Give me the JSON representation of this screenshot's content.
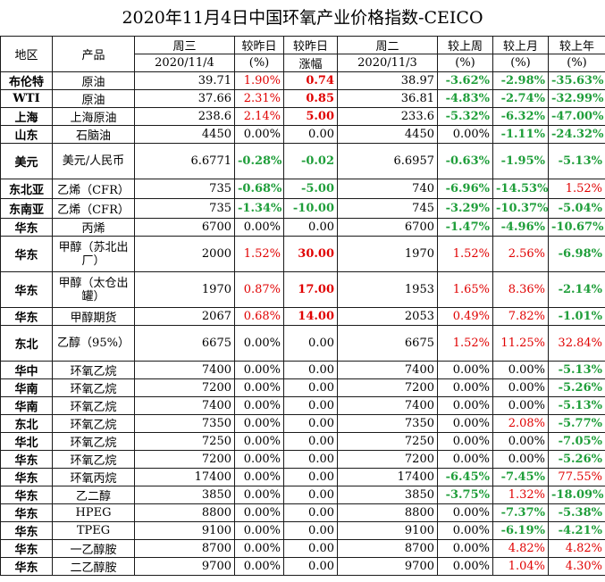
{
  "title": "2020年11月4日中国环氧产业价格指数-CEICO",
  "headers": {
    "region": "地区",
    "product": "产品",
    "wed": "周三",
    "wed_date": "2020/11/4",
    "chg_day": "较昨日",
    "chg_day_unit": "(%)",
    "chg_day_amt": "较昨日",
    "chg_day_amt_unit": "涨幅",
    "tue": "周二",
    "tue_date": "2020/11/3",
    "chg_week": "较上周",
    "chg_week_unit": "(%)",
    "chg_month": "较上月",
    "chg_month_unit": "(%)",
    "chg_year": "较上年",
    "chg_year_unit": "(%)"
  },
  "rows": [
    {
      "region": "布伦特",
      "product": "原油",
      "wed": "39.71",
      "pct": "1.90%",
      "pct_c": "red",
      "amt": "0.74",
      "amt_c": "redb",
      "tue": "38.97",
      "wk": "-3.62%",
      "wk_c": "green",
      "mo": "-2.98%",
      "mo_c": "green",
      "yr": "-35.63%",
      "yr_c": "green",
      "h": 20
    },
    {
      "region": "WTI",
      "product": "原油",
      "wed": "37.66",
      "pct": "2.31%",
      "pct_c": "red",
      "amt": "0.85",
      "amt_c": "redb",
      "tue": "36.81",
      "wk": "-4.83%",
      "wk_c": "green",
      "mo": "-2.74%",
      "mo_c": "green",
      "yr": "-32.99%",
      "yr_c": "green",
      "h": 20
    },
    {
      "region": "上海",
      "product": "上海原油",
      "wed": "238.6",
      "pct": "2.14%",
      "pct_c": "red",
      "amt": "5.00",
      "amt_c": "redb",
      "tue": "233.6",
      "wk": "-5.32%",
      "wk_c": "green",
      "mo": "-6.32%",
      "mo_c": "green",
      "yr": "-47.00%",
      "yr_c": "green",
      "h": 20
    },
    {
      "region": "山东",
      "product": "石脑油",
      "wed": "4450",
      "pct": "0.00%",
      "pct_c": "black",
      "amt": "0.00",
      "amt_c": "black",
      "tue": "4450",
      "wk": "0.00%",
      "wk_c": "black",
      "mo": "-1.11%",
      "mo_c": "green",
      "yr": "-24.32%",
      "yr_c": "green",
      "h": 20
    },
    {
      "region": "美元",
      "product": "美元/人民币",
      "wed": "6.6771",
      "pct": "-0.28%",
      "pct_c": "green",
      "amt": "-0.02",
      "amt_c": "green",
      "tue": "6.6957",
      "wk": "-0.63%",
      "wk_c": "green",
      "mo": "-1.95%",
      "mo_c": "green",
      "yr": "-5.13%",
      "yr_c": "green",
      "h": 40,
      "wrap": true
    },
    {
      "region": "东北亚",
      "product": "乙烯（CFR）",
      "wed": "735",
      "pct": "-0.68%",
      "pct_c": "green",
      "amt": "-5.00",
      "amt_c": "green",
      "tue": "740",
      "wk": "-6.96%",
      "wk_c": "green",
      "mo": "-14.53%",
      "mo_c": "green",
      "yr": "1.52%",
      "yr_c": "red",
      "h": 22
    },
    {
      "region": "东南亚",
      "product": "乙烯（CFR）",
      "wed": "735",
      "pct": "-1.34%",
      "pct_c": "green",
      "amt": "-10.00",
      "amt_c": "green",
      "tue": "745",
      "wk": "-3.29%",
      "wk_c": "green",
      "mo": "-10.37%",
      "mo_c": "green",
      "yr": "-5.04%",
      "yr_c": "green",
      "h": 22
    },
    {
      "region": "华东",
      "product": "丙烯",
      "wed": "6700",
      "pct": "0.00%",
      "pct_c": "black",
      "amt": "0.00",
      "amt_c": "black",
      "tue": "6700",
      "wk": "-1.47%",
      "wk_c": "green",
      "mo": "-4.96%",
      "mo_c": "green",
      "yr": "-10.67%",
      "yr_c": "green",
      "h": 20
    },
    {
      "region": "华东",
      "product": "甲醇（苏北出厂）",
      "wed": "2000",
      "pct": "1.52%",
      "pct_c": "red",
      "amt": "30.00",
      "amt_c": "redb",
      "tue": "1970",
      "wk": "1.52%",
      "wk_c": "red",
      "mo": "2.56%",
      "mo_c": "red",
      "yr": "-6.98%",
      "yr_c": "green",
      "h": 40,
      "wrap": true
    },
    {
      "region": "华东",
      "product": "甲醇（太仓出罐）",
      "wed": "1970",
      "pct": "0.87%",
      "pct_c": "red",
      "amt": "17.00",
      "amt_c": "redb",
      "tue": "1953",
      "wk": "1.65%",
      "wk_c": "red",
      "mo": "8.36%",
      "mo_c": "red",
      "yr": "-2.14%",
      "yr_c": "green",
      "h": 40,
      "wrap": true
    },
    {
      "region": "华东",
      "product": "甲醇期货",
      "wed": "2067",
      "pct": "0.68%",
      "pct_c": "red",
      "amt": "14.00",
      "amt_c": "redb",
      "tue": "2053",
      "wk": "0.49%",
      "wk_c": "red",
      "mo": "7.82%",
      "mo_c": "red",
      "yr": "-1.01%",
      "yr_c": "green",
      "h": 20
    },
    {
      "region": "东北",
      "product": "乙醇（95%）",
      "wed": "6675",
      "pct": "0.00%",
      "pct_c": "black",
      "amt": "0.00",
      "amt_c": "black",
      "tue": "6675",
      "wk": "1.52%",
      "wk_c": "red",
      "mo": "11.25%",
      "mo_c": "red",
      "yr": "32.84%",
      "yr_c": "red",
      "h": 40,
      "wrap": true
    },
    {
      "region": "华中",
      "product": "环氧乙烷",
      "wed": "7400",
      "pct": "0.00%",
      "pct_c": "black",
      "amt": "0.00",
      "amt_c": "black",
      "tue": "7400",
      "wk": "0.00%",
      "wk_c": "black",
      "mo": "0.00%",
      "mo_c": "black",
      "yr": "-5.13%",
      "yr_c": "green",
      "h": 20
    },
    {
      "region": "华南",
      "product": "环氧乙烷",
      "wed": "7200",
      "pct": "0.00%",
      "pct_c": "black",
      "amt": "0.00",
      "amt_c": "black",
      "tue": "7200",
      "wk": "0.00%",
      "wk_c": "black",
      "mo": "0.00%",
      "mo_c": "black",
      "yr": "-5.26%",
      "yr_c": "green",
      "h": 20
    },
    {
      "region": "华南",
      "product": "环氧乙烷",
      "wed": "7400",
      "pct": "0.00%",
      "pct_c": "black",
      "amt": "0.00",
      "amt_c": "black",
      "tue": "7400",
      "wk": "0.00%",
      "wk_c": "black",
      "mo": "0.00%",
      "mo_c": "black",
      "yr": "-5.13%",
      "yr_c": "green",
      "h": 20
    },
    {
      "region": "东北",
      "product": "环氧乙烷",
      "wed": "7350",
      "pct": "0.00%",
      "pct_c": "black",
      "amt": "0.00",
      "amt_c": "black",
      "tue": "7350",
      "wk": "0.00%",
      "wk_c": "black",
      "mo": "2.08%",
      "mo_c": "red",
      "yr": "-5.77%",
      "yr_c": "green",
      "h": 20
    },
    {
      "region": "华北",
      "product": "环氧乙烷",
      "wed": "7250",
      "pct": "0.00%",
      "pct_c": "black",
      "amt": "0.00",
      "amt_c": "black",
      "tue": "7250",
      "wk": "0.00%",
      "wk_c": "black",
      "mo": "0.00%",
      "mo_c": "black",
      "yr": "-7.05%",
      "yr_c": "green",
      "h": 20
    },
    {
      "region": "华东",
      "product": "环氧乙烷",
      "wed": "7200",
      "pct": "0.00%",
      "pct_c": "black",
      "amt": "0.00",
      "amt_c": "black",
      "tue": "7200",
      "wk": "0.00%",
      "wk_c": "black",
      "mo": "0.00%",
      "mo_c": "black",
      "yr": "-5.26%",
      "yr_c": "green",
      "h": 20
    },
    {
      "region": "华东",
      "product": "环氧丙烷",
      "wed": "17400",
      "pct": "0.00%",
      "pct_c": "black",
      "amt": "0.00",
      "amt_c": "black",
      "tue": "17400",
      "wk": "-6.45%",
      "wk_c": "green",
      "mo": "-7.45%",
      "mo_c": "green",
      "yr": "77.55%",
      "yr_c": "red",
      "h": 20
    },
    {
      "region": "华东",
      "product": "乙二醇",
      "wed": "3850",
      "pct": "0.00%",
      "pct_c": "black",
      "amt": "0.00",
      "amt_c": "black",
      "tue": "3850",
      "wk": "-3.75%",
      "wk_c": "green",
      "mo": "1.32%",
      "mo_c": "red",
      "yr": "-18.09%",
      "yr_c": "green",
      "h": 20
    },
    {
      "region": "华东",
      "product": "HPEG",
      "wed": "8800",
      "pct": "0.00%",
      "pct_c": "black",
      "amt": "0.00",
      "amt_c": "black",
      "tue": "8800",
      "wk": "0.00%",
      "wk_c": "black",
      "mo": "-7.37%",
      "mo_c": "green",
      "yr": "-5.38%",
      "yr_c": "green",
      "h": 20
    },
    {
      "region": "华东",
      "product": "TPEG",
      "wed": "9100",
      "pct": "0.00%",
      "pct_c": "black",
      "amt": "0.00",
      "amt_c": "black",
      "tue": "9100",
      "wk": "0.00%",
      "wk_c": "black",
      "mo": "-6.19%",
      "mo_c": "green",
      "yr": "-4.21%",
      "yr_c": "green",
      "h": 20
    },
    {
      "region": "华东",
      "product": "一乙醇胺",
      "wed": "8700",
      "pct": "0.00%",
      "pct_c": "black",
      "amt": "0.00",
      "amt_c": "black",
      "tue": "8700",
      "wk": "0.00%",
      "wk_c": "black",
      "mo": "4.82%",
      "mo_c": "red",
      "yr": "4.82%",
      "yr_c": "red",
      "h": 20
    },
    {
      "region": "华东",
      "product": "二乙醇胺",
      "wed": "9700",
      "pct": "0.00%",
      "pct_c": "black",
      "amt": "0.00",
      "amt_c": "black",
      "tue": "9700",
      "wk": "0.00%",
      "wk_c": "black",
      "mo": "1.04%",
      "mo_c": "red",
      "yr": "4.30%",
      "yr_c": "red",
      "h": 20
    }
  ]
}
